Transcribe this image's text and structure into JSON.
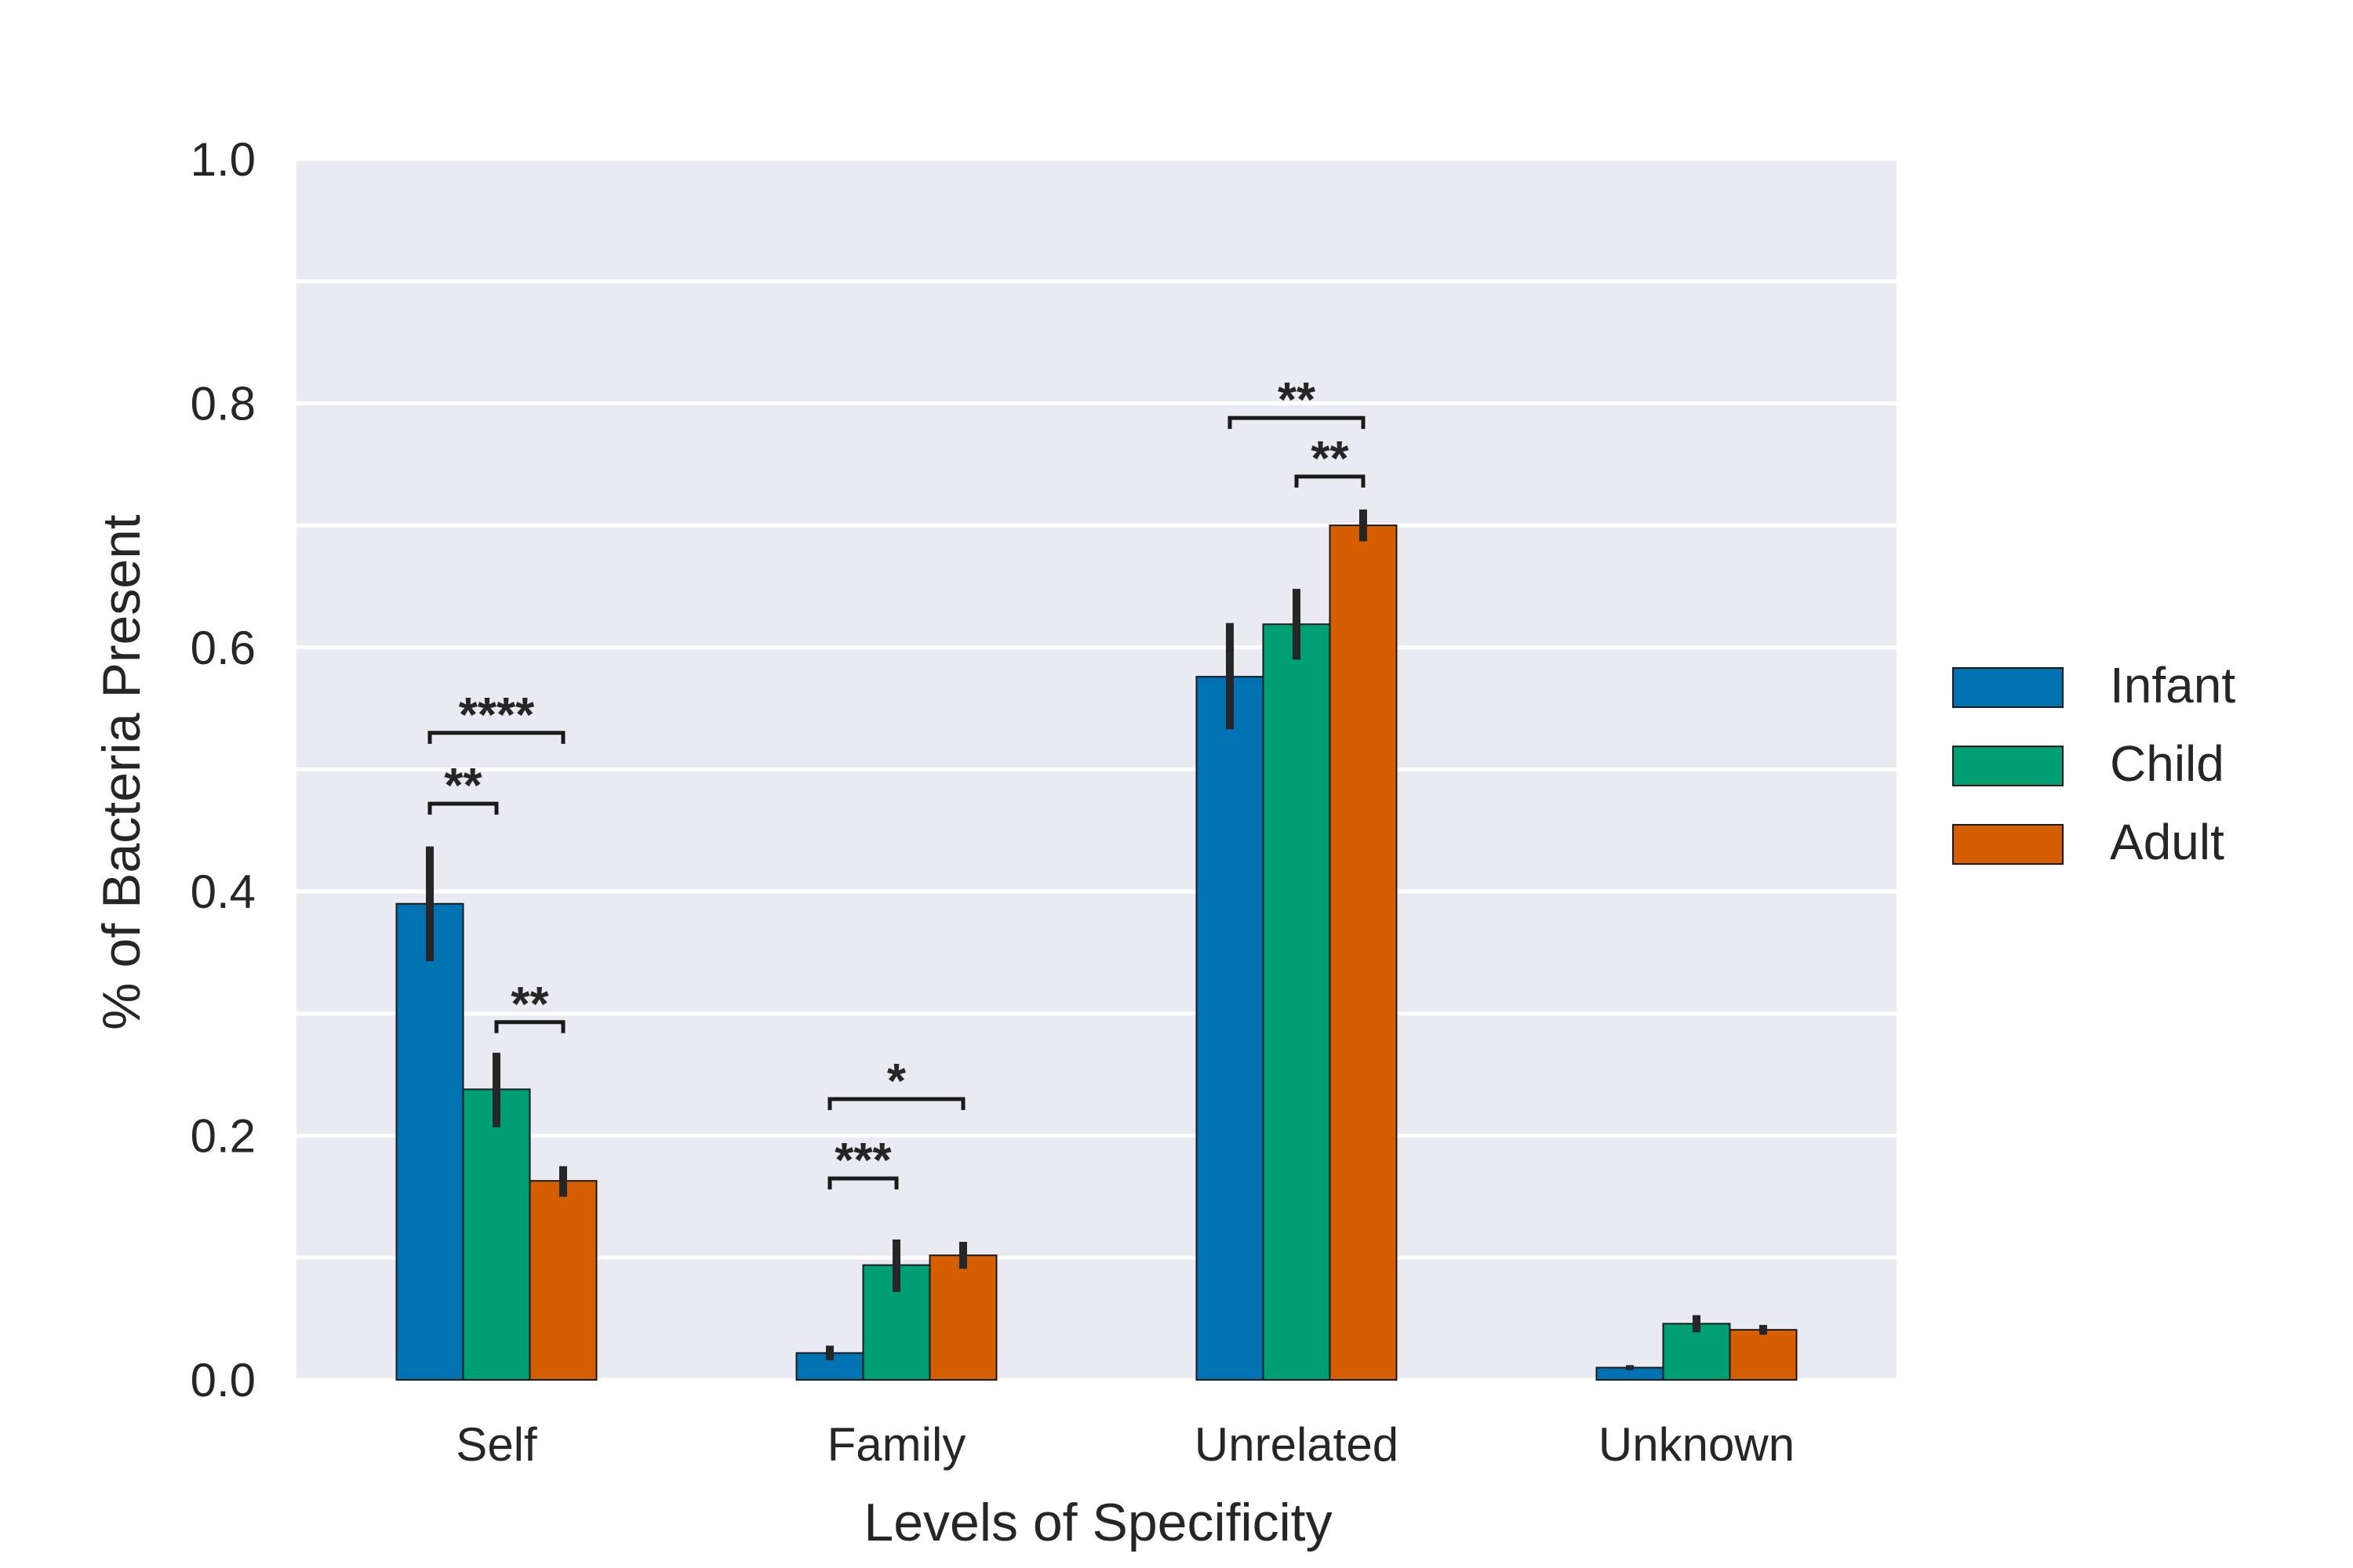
{
  "chart_data": {
    "type": "bar",
    "xlabel": "Levels of Specificity",
    "ylabel": "% of Bacteria Present",
    "categories": [
      "Self",
      "Family",
      "Unrelated",
      "Unknown"
    ],
    "ylim": [
      0,
      1.0
    ],
    "y_ticks": [
      {
        "value": 0.0,
        "label": "0.0"
      },
      {
        "value": 0.2,
        "label": "0.2"
      },
      {
        "value": 0.4,
        "label": "0.4"
      },
      {
        "value": 0.6,
        "label": "0.6"
      },
      {
        "value": 0.8,
        "label": "0.8"
      },
      {
        "value": 1.0,
        "label": "1.0"
      }
    ],
    "minor_gridlines": [
      0.1,
      0.3,
      0.5,
      0.7,
      0.9
    ],
    "grid": true,
    "legend_position": "right",
    "series": [
      {
        "name": "Infant",
        "color": "#0072B2",
        "values": [
          0.39,
          0.022,
          0.576,
          0.01
        ],
        "error_low": [
          0.343,
          0.016,
          0.533,
          0.008
        ],
        "error_high": [
          0.437,
          0.028,
          0.62,
          0.012
        ]
      },
      {
        "name": "Child",
        "color": "#009E73",
        "values": [
          0.238,
          0.094,
          0.619,
          0.046
        ],
        "error_low": [
          0.207,
          0.072,
          0.59,
          0.039
        ],
        "error_high": [
          0.268,
          0.115,
          0.648,
          0.053
        ]
      },
      {
        "name": "Adult",
        "color": "#D55E00",
        "values": [
          0.163,
          0.102,
          0.7,
          0.041
        ],
        "error_low": [
          0.15,
          0.091,
          0.687,
          0.037
        ],
        "error_high": [
          0.175,
          0.113,
          0.713,
          0.045
        ]
      }
    ],
    "annotations": [
      {
        "text": "****",
        "category": 0,
        "from_series": 0,
        "to_series": 2,
        "y": 0.53
      },
      {
        "text": "**",
        "category": 0,
        "from_series": 0,
        "to_series": 1,
        "y": 0.472
      },
      {
        "text": "**",
        "category": 0,
        "from_series": 1,
        "to_series": 2,
        "y": 0.293
      },
      {
        "text": "*",
        "category": 1,
        "from_series": 0,
        "to_series": 2,
        "y": 0.23
      },
      {
        "text": "***",
        "category": 1,
        "from_series": 0,
        "to_series": 1,
        "y": 0.165
      },
      {
        "text": "**",
        "category": 2,
        "from_series": 0,
        "to_series": 2,
        "y": 0.788
      },
      {
        "text": "**",
        "category": 2,
        "from_series": 1,
        "to_series": 2,
        "y": 0.74
      }
    ]
  }
}
